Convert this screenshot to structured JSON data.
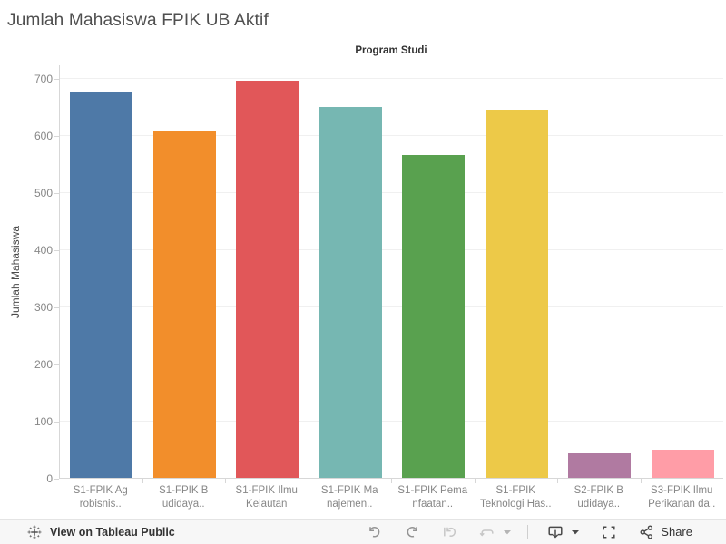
{
  "chart_data": {
    "type": "bar",
    "title": "Jumlah Mahasiswa FPIK UB Aktif",
    "column_field_label": "Program Studi",
    "xlabel": "Program Studi",
    "ylabel": "Jumlah Mahasiswa",
    "ylim": [
      0,
      723
    ],
    "yticks": [
      0,
      100,
      200,
      300,
      400,
      500,
      600,
      700
    ],
    "grid": true,
    "legend": "none",
    "categories": [
      "S1-FPIK Agrobisnis..",
      "S1-FPIK Budidaya..",
      "S1-FPIK Ilmu Kelautan",
      "S1-FPIK Manajemen..",
      "S1-FPIK Pemanfaatan..",
      "S1-FPIK Teknologi Has..",
      "S2-FPIK Budidaya..",
      "S3-FPIK Ilmu Perikanan da.."
    ],
    "category_label_lines": [
      [
        "S1-FPIK Ag",
        "robisnis.."
      ],
      [
        "S1-FPIK B",
        "udidaya.."
      ],
      [
        "S1-FPIK Ilmu",
        "Kelautan"
      ],
      [
        "S1-FPIK Ma",
        "najemen.."
      ],
      [
        "S1-FPIK Pema",
        "nfaatan.."
      ],
      [
        "S1-FPIK",
        "Teknologi Has.."
      ],
      [
        "S2-FPIK B",
        "udidaya.."
      ],
      [
        "S3-FPIK Ilmu",
        "Perikanan da.."
      ]
    ],
    "values": [
      676,
      607,
      695,
      648,
      564,
      644,
      43,
      49
    ],
    "colors": [
      "#4E79A7",
      "#F28E2B",
      "#E15759",
      "#76B7B2",
      "#59A14F",
      "#EDC948",
      "#B07AA1",
      "#FF9DA7"
    ]
  },
  "toolbar": {
    "view_link_label": "View on Tableau Public",
    "share_label": "Share"
  },
  "ui_colors": {
    "title_text": "#4f4f4f",
    "axis_text": "#878787",
    "axis_line": "#d7d7d7",
    "gridline": "#f0f0f0",
    "toolbar_bg": "#f7f7f7",
    "toolbar_border": "#e4e4e4",
    "toolbar_icon": "#4a4a4a",
    "toolbar_icon_disabled": "#c7c7c7",
    "toolbar_icon_enabled_gray": "#949494"
  }
}
